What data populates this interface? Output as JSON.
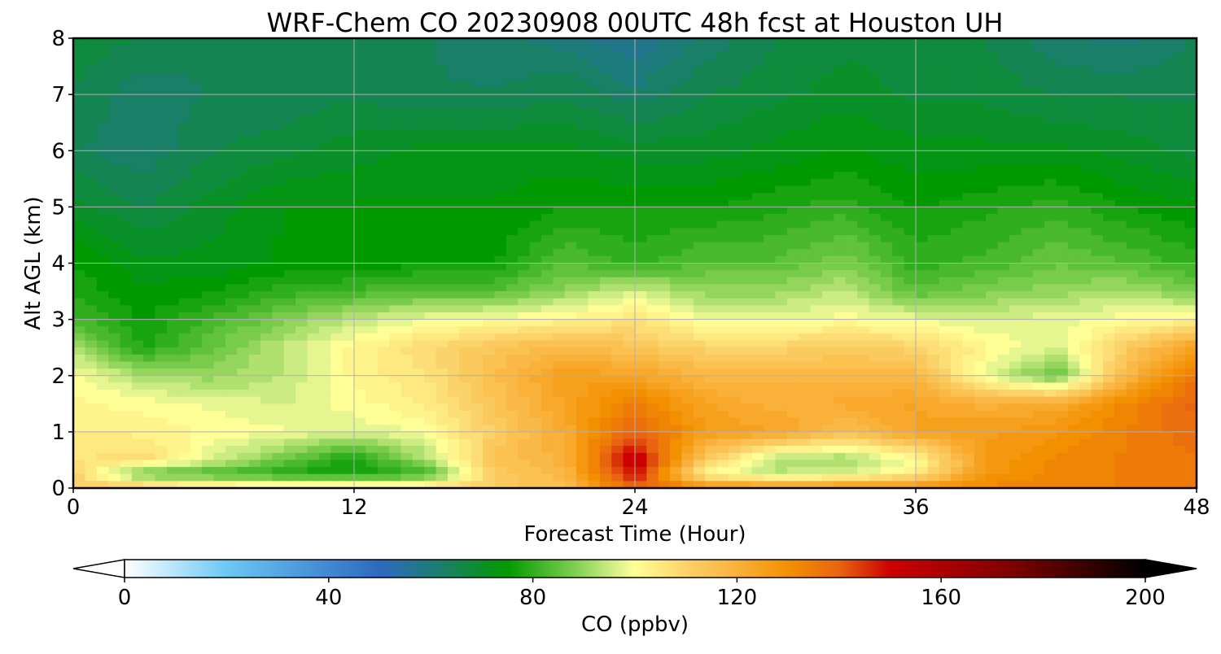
{
  "chart_data": {
    "type": "heatmap",
    "title": "WRF-Chem CO  20230908 00UTC 48h fcst at Houston UH",
    "xlabel": "Forecast Time (Hour)",
    "ylabel": "Alt AGL (km)",
    "xlim": [
      0,
      48
    ],
    "ylim": [
      0,
      8
    ],
    "x_ticks": [
      0,
      12,
      24,
      36,
      48
    ],
    "y_ticks": [
      0,
      1,
      2,
      3,
      4,
      5,
      6,
      7,
      8
    ],
    "grid": true,
    "x": [
      0,
      3,
      6,
      9,
      12,
      15,
      18,
      21,
      24,
      27,
      30,
      33,
      36,
      39,
      42,
      45,
      48
    ],
    "y": [
      0,
      0.25,
      0.5,
      1,
      1.5,
      2,
      2.5,
      3,
      3.5,
      4,
      5,
      6,
      7,
      8
    ],
    "z": [
      [
        112,
        114,
        108,
        108,
        108,
        108,
        112,
        116,
        140,
        132,
        128,
        130,
        130,
        132,
        132,
        134,
        136
      ],
      [
        110,
        84,
        82,
        78,
        76,
        80,
        112,
        118,
        150,
        100,
        94,
        96,
        104,
        128,
        132,
        134,
        136
      ],
      [
        106,
        108,
        96,
        86,
        76,
        92,
        114,
        120,
        154,
        112,
        92,
        90,
        100,
        126,
        132,
        134,
        136
      ],
      [
        104,
        103,
        101,
        99,
        97,
        99,
        112,
        122,
        140,
        126,
        124,
        116,
        124,
        126,
        128,
        134,
        138
      ],
      [
        102,
        100,
        98,
        96,
        100,
        104,
        114,
        124,
        134,
        124,
        120,
        122,
        124,
        120,
        122,
        132,
        140
      ],
      [
        100,
        92,
        90,
        94,
        102,
        106,
        116,
        126,
        124,
        118,
        118,
        118,
        118,
        98,
        84,
        118,
        136
      ],
      [
        92,
        78,
        86,
        94,
        102,
        108,
        114,
        118,
        114,
        110,
        110,
        112,
        110,
        102,
        96,
        112,
        126
      ],
      [
        82,
        76,
        82,
        88,
        94,
        98,
        100,
        102,
        106,
        98,
        98,
        100,
        98,
        96,
        98,
        100,
        102
      ],
      [
        78,
        74,
        76,
        80,
        82,
        84,
        84,
        90,
        96,
        90,
        90,
        94,
        84,
        88,
        90,
        92,
        88
      ],
      [
        76,
        72,
        72,
        74,
        74,
        76,
        76,
        84,
        80,
        84,
        84,
        88,
        80,
        82,
        86,
        84,
        80
      ],
      [
        70,
        66,
        70,
        74,
        74,
        74,
        74,
        76,
        76,
        76,
        78,
        80,
        76,
        78,
        80,
        76,
        74
      ],
      [
        64,
        62,
        66,
        68,
        70,
        72,
        72,
        72,
        70,
        70,
        72,
        74,
        72,
        72,
        72,
        70,
        68
      ],
      [
        66,
        62,
        64,
        64,
        66,
        64,
        64,
        66,
        62,
        66,
        68,
        70,
        68,
        68,
        66,
        66,
        66
      ],
      [
        68,
        66,
        64,
        64,
        66,
        64,
        62,
        60,
        56,
        62,
        66,
        68,
        68,
        66,
        62,
        60,
        64
      ]
    ],
    "colorbar": {
      "label": "CO  (ppbv)",
      "min": 0,
      "max": 200,
      "ticks": [
        0,
        40,
        80,
        120,
        160,
        200
      ],
      "extend": "both",
      "color_stops": [
        {
          "value": 0,
          "color": "#ffffff"
        },
        {
          "value": 20,
          "color": "#6cc8f5"
        },
        {
          "value": 50,
          "color": "#2e68c0"
        },
        {
          "value": 60,
          "color": "#1e7b7b"
        },
        {
          "value": 75,
          "color": "#009a00"
        },
        {
          "value": 88,
          "color": "#7ece4e"
        },
        {
          "value": 96,
          "color": "#d6ef8a"
        },
        {
          "value": 100,
          "color": "#ffff96"
        },
        {
          "value": 110,
          "color": "#fcd26a"
        },
        {
          "value": 120,
          "color": "#f9b13a"
        },
        {
          "value": 130,
          "color": "#f39000"
        },
        {
          "value": 140,
          "color": "#e86410"
        },
        {
          "value": 150,
          "color": "#cc0000"
        },
        {
          "value": 175,
          "color": "#7a0000"
        },
        {
          "value": 200,
          "color": "#000000"
        }
      ]
    }
  }
}
